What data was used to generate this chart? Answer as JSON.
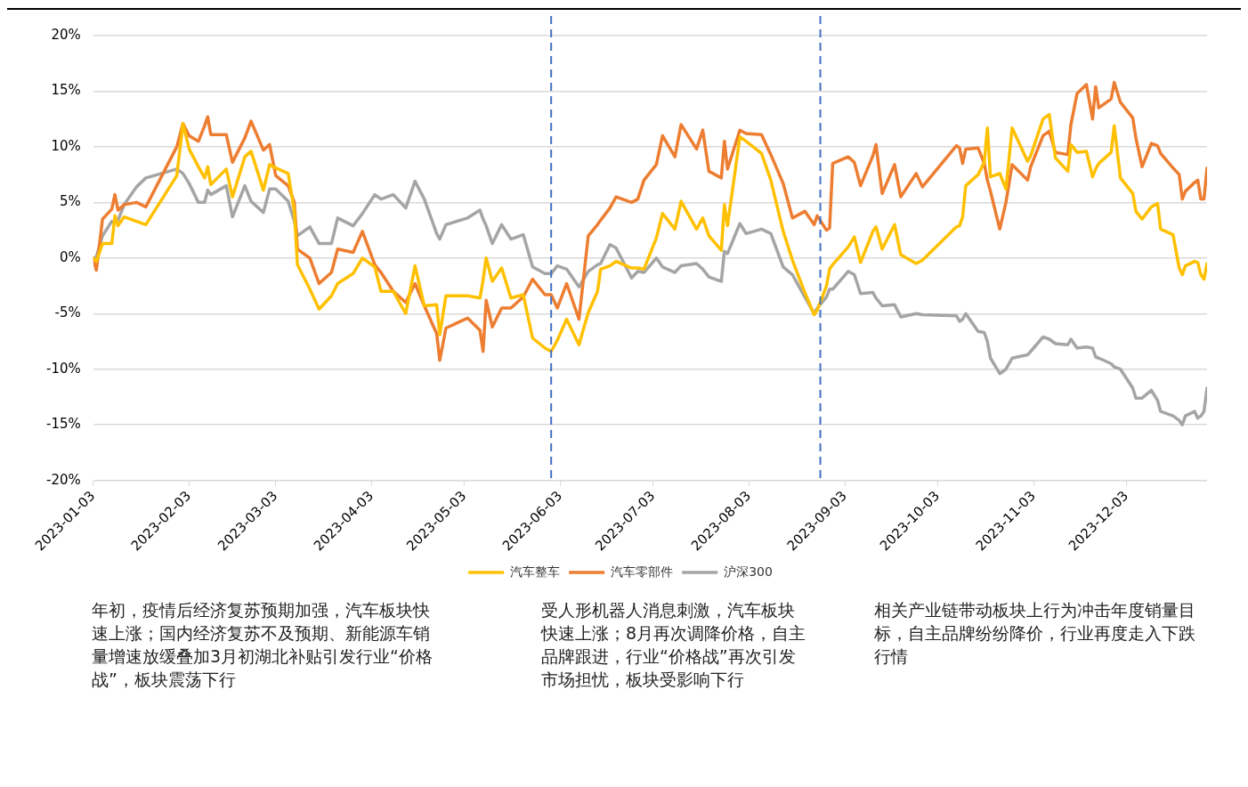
{
  "chart_data": {
    "type": "line",
    "x": [
      "2023-01-03",
      "2023-01-04",
      "2023-01-06",
      "2023-01-09",
      "2023-01-10",
      "2023-01-11",
      "2023-01-13",
      "2023-01-17",
      "2023-01-20",
      "2023-01-30",
      "2023-02-01",
      "2023-02-03",
      "2023-02-06",
      "2023-02-08",
      "2023-02-09",
      "2023-02-10",
      "2023-02-15",
      "2023-02-17",
      "2023-02-21",
      "2023-02-23",
      "2023-02-27",
      "2023-03-01",
      "2023-03-03",
      "2023-03-07",
      "2023-03-09",
      "2023-03-10",
      "2023-03-14",
      "2023-03-17",
      "2023-03-21",
      "2023-03-23",
      "2023-03-28",
      "2023-03-31",
      "2023-04-04",
      "2023-04-06",
      "2023-04-10",
      "2023-04-14",
      "2023-04-17",
      "2023-04-20",
      "2023-04-24",
      "2023-04-25",
      "2023-04-27",
      "2023-05-04",
      "2023-05-08",
      "2023-05-09",
      "2023-05-10",
      "2023-05-12",
      "2023-05-15",
      "2023-05-18",
      "2023-05-22",
      "2023-05-25",
      "2023-05-29",
      "2023-05-31",
      "2023-06-02",
      "2023-06-05",
      "2023-06-09",
      "2023-06-12",
      "2023-06-15",
      "2023-06-16",
      "2023-06-19",
      "2023-06-21",
      "2023-06-26",
      "2023-06-28",
      "2023-06-30",
      "2023-07-04",
      "2023-07-06",
      "2023-07-10",
      "2023-07-12",
      "2023-07-17",
      "2023-07-19",
      "2023-07-21",
      "2023-07-25",
      "2023-07-26",
      "2023-07-27",
      "2023-07-31",
      "2023-08-02",
      "2023-08-07",
      "2023-08-10",
      "2023-08-14",
      "2023-08-17",
      "2023-08-21",
      "2023-08-24",
      "2023-08-25",
      "2023-08-28",
      "2023-08-29",
      "2023-08-30",
      "2023-09-04",
      "2023-09-06",
      "2023-09-08",
      "2023-09-12",
      "2023-09-13",
      "2023-09-15",
      "2023-09-19",
      "2023-09-21",
      "2023-09-26",
      "2023-09-28",
      "2023-10-09",
      "2023-10-10",
      "2023-10-11",
      "2023-10-12",
      "2023-10-16",
      "2023-10-18",
      "2023-10-19",
      "2023-10-20",
      "2023-10-23",
      "2023-10-25",
      "2023-10-27",
      "2023-11-01",
      "2023-11-02",
      "2023-11-06",
      "2023-11-08",
      "2023-11-10",
      "2023-11-14",
      "2023-11-15",
      "2023-11-17",
      "2023-11-20",
      "2023-11-22",
      "2023-11-23",
      "2023-11-24",
      "2023-11-28",
      "2023-11-29",
      "2023-12-01",
      "2023-12-05",
      "2023-12-06",
      "2023-12-08",
      "2023-12-11",
      "2023-12-13",
      "2023-12-14",
      "2023-12-18",
      "2023-12-20",
      "2023-12-21",
      "2023-12-22",
      "2023-12-25",
      "2023-12-26",
      "2023-12-27",
      "2023-12-28",
      "2023-12-29"
    ],
    "series": [
      {
        "name": "汽车整车",
        "color": "#ffc000",
        "values": [
          0,
          -0.3,
          1.3,
          1.3,
          3.8,
          2.9,
          3.7,
          3.3,
          3.0,
          7.4,
          12.1,
          9.8,
          8.2,
          7.2,
          8.2,
          6.6,
          8.0,
          5.5,
          9.1,
          9.6,
          6.1,
          8.4,
          8.1,
          7.6,
          4.2,
          -0.6,
          -2.8,
          -4.6,
          -3.4,
          -2.3,
          -1.4,
          0.0,
          -0.8,
          -3.0,
          -3.0,
          -5.0,
          -0.7,
          -4.3,
          -4.2,
          -6.9,
          -3.4,
          -3.4,
          -3.6,
          -2.0,
          0.0,
          -2.1,
          -0.9,
          -3.6,
          -3.3,
          -7.2,
          -8.1,
          -8.4,
          -7.4,
          -5.5,
          -7.8,
          -4.9,
          -3.0,
          -1.0,
          -0.7,
          -0.3,
          -0.9,
          -0.9,
          -1.0,
          1.8,
          4.0,
          2.6,
          5.1,
          2.6,
          3.6,
          2.0,
          0.7,
          4.8,
          2.9,
          10.9,
          10.5,
          9.4,
          7.0,
          2.4,
          -0.2,
          -3.1,
          -5.1,
          -4.7,
          -2.5,
          -1.0,
          -0.6,
          1.0,
          1.9,
          -0.4,
          2.4,
          2.8,
          0.8,
          3.0,
          0.3,
          -0.5,
          -0.2,
          2.8,
          2.9,
          3.7,
          6.5,
          7.5,
          8.6,
          11.7,
          7.3,
          7.6,
          6.2,
          11.7,
          8.7,
          9.2,
          12.5,
          12.9,
          9.0,
          7.8,
          10.2,
          9.5,
          9.6,
          7.3,
          8.0,
          8.5,
          9.5,
          11.9,
          7.2,
          5.8,
          4.2,
          3.5,
          4.6,
          4.9,
          2.6,
          2.1,
          -0.9,
          -1.5,
          -0.7,
          -0.3,
          -0.4,
          -1.5,
          -1.9,
          -0.5
        ]
      },
      {
        "name": "汽车零部件",
        "color": "#ed7d31",
        "values": [
          0,
          -1.1,
          3.5,
          4.4,
          5.7,
          4.3,
          4.8,
          5.0,
          4.6,
          10.0,
          12.1,
          11.0,
          10.5,
          11.9,
          12.7,
          11.1,
          11.1,
          8.6,
          10.8,
          12.3,
          9.7,
          10.2,
          7.4,
          6.5,
          5.0,
          0.8,
          0.0,
          -2.3,
          -1.3,
          0.8,
          0.5,
          2.4,
          -0.6,
          -1.3,
          -3.0,
          -4.0,
          -2.3,
          -4.3,
          -6.8,
          -9.2,
          -6.3,
          -5.4,
          -6.5,
          -8.4,
          -3.8,
          -6.2,
          -4.5,
          -4.5,
          -3.5,
          -1.9,
          -3.3,
          -3.3,
          -4.5,
          -2.3,
          -5.5,
          2.0,
          3.0,
          3.4,
          4.5,
          5.5,
          5.0,
          5.3,
          7.0,
          8.4,
          11.0,
          9.1,
          12.0,
          9.8,
          11.5,
          7.8,
          7.2,
          10.5,
          8.0,
          11.5,
          11.2,
          11.1,
          9.3,
          6.7,
          3.6,
          4.2,
          3.0,
          3.8,
          2.5,
          2.7,
          8.5,
          9.1,
          8.6,
          6.5,
          9.2,
          10.2,
          5.8,
          8.4,
          5.5,
          7.6,
          6.4,
          10.1,
          9.9,
          8.5,
          9.8,
          9.9,
          8.5,
          7.0,
          6.0,
          2.6,
          5.0,
          8.4,
          7.0,
          8.2,
          11.0,
          11.4,
          9.5,
          9.3,
          12.0,
          14.8,
          15.6,
          12.5,
          15.4,
          13.5,
          14.3,
          15.8,
          14.0,
          12.6,
          10.8,
          8.2,
          10.3,
          10.1,
          9.4,
          8.1,
          7.5,
          5.3,
          6.0,
          6.8,
          7.0,
          5.3,
          5.3,
          8.1
        ]
      },
      {
        "name": "沪深300",
        "color": "#a5a5a5",
        "values": [
          0,
          0.1,
          2.0,
          3.3,
          3.2,
          3.4,
          4.8,
          6.4,
          7.2,
          8.0,
          7.6,
          6.7,
          5.0,
          5.0,
          6.1,
          5.7,
          6.5,
          3.7,
          6.5,
          5.1,
          4.1,
          6.2,
          6.2,
          5.1,
          3.3,
          2.0,
          2.8,
          1.3,
          1.3,
          3.6,
          2.9,
          4.0,
          5.7,
          5.3,
          5.7,
          4.5,
          6.9,
          5.3,
          2.2,
          1.7,
          3.0,
          3.6,
          4.3,
          3.5,
          2.9,
          1.3,
          3.0,
          1.7,
          2.1,
          -0.8,
          -1.4,
          -1.4,
          -0.7,
          -1.0,
          -2.6,
          -1.2,
          -0.6,
          -0.5,
          1.2,
          0.9,
          -1.8,
          -1.2,
          -1.3,
          0.0,
          -0.8,
          -1.3,
          -0.7,
          -0.5,
          -1.0,
          -1.7,
          -2.1,
          0.6,
          0.4,
          3.1,
          2.2,
          2.6,
          2.2,
          -0.8,
          -1.5,
          -3.5,
          -5.0,
          -4.5,
          -3.5,
          -2.8,
          -2.8,
          -1.2,
          -1.5,
          -3.2,
          -3.1,
          -3.6,
          -4.3,
          -4.2,
          -5.3,
          -5.0,
          -5.1,
          -5.2,
          -5.7,
          -5.5,
          -5.0,
          -6.6,
          -6.7,
          -7.5,
          -9.0,
          -10.4,
          -10.0,
          -9.0,
          -8.7,
          -8.4,
          -7.1,
          -7.3,
          -7.7,
          -7.8,
          -7.3,
          -8.1,
          -8.0,
          -8.1,
          -8.9,
          -9.0,
          -9.5,
          -9.8,
          -10.0,
          -11.7,
          -12.6,
          -12.6,
          -11.9,
          -12.8,
          -13.8,
          -14.2,
          -14.6,
          -15.0,
          -14.2,
          -13.8,
          -14.4,
          -14.2,
          -13.8,
          -11.7
        ]
      }
    ],
    "xlim": [
      "2023-01-03",
      "2023-12-29"
    ],
    "xticks": [
      "2023-01-03",
      "2023-02-03",
      "2023-03-03",
      "2023-04-03",
      "2023-05-03",
      "2023-06-03",
      "2023-07-03",
      "2023-08-03",
      "2023-09-03",
      "2023-10-03",
      "2023-11-03",
      "2023-12-03"
    ],
    "ylim": [
      -20,
      20
    ],
    "yticks": [
      {
        "value": -20,
        "label": "-20%"
      },
      {
        "value": -15,
        "label": "-15%"
      },
      {
        "value": -10,
        "label": "-10%"
      },
      {
        "value": -5,
        "label": "-5%"
      },
      {
        "value": 0,
        "label": "0%"
      },
      {
        "value": 5,
        "label": "5%"
      },
      {
        "value": 10,
        "label": "10%"
      },
      {
        "value": 15,
        "label": "15%"
      },
      {
        "value": 20,
        "label": "20%"
      }
    ],
    "ref_lines": [
      {
        "axis": "x",
        "value": "2023-05-31",
        "color": "#4472c4",
        "line_style": "dashed"
      },
      {
        "axis": "x",
        "value": "2023-08-26",
        "color": "#4472c4",
        "line_style": "dashed"
      }
    ],
    "grid": "y",
    "legend": "bottom",
    "marker": "none",
    "annotations": [
      "年初，疫情后经济复苏预期加强，汽车板块快速上涨；国内经济复苏不及预期、新能源车销量增速放缓叠加3月初湖北补贴引发行业“价格战”，板块震荡下行",
      "受人形机器人消息刺激，汽车板块快速上涨；8月再次调降价格，自主品牌跟进，行业“价格战”再次引发市场担忧，板块受影响下行",
      "相关产业链带动板块上行为冲击年度销量目标，自主品牌纷纷降价，行业再度走入下跌行情"
    ]
  }
}
